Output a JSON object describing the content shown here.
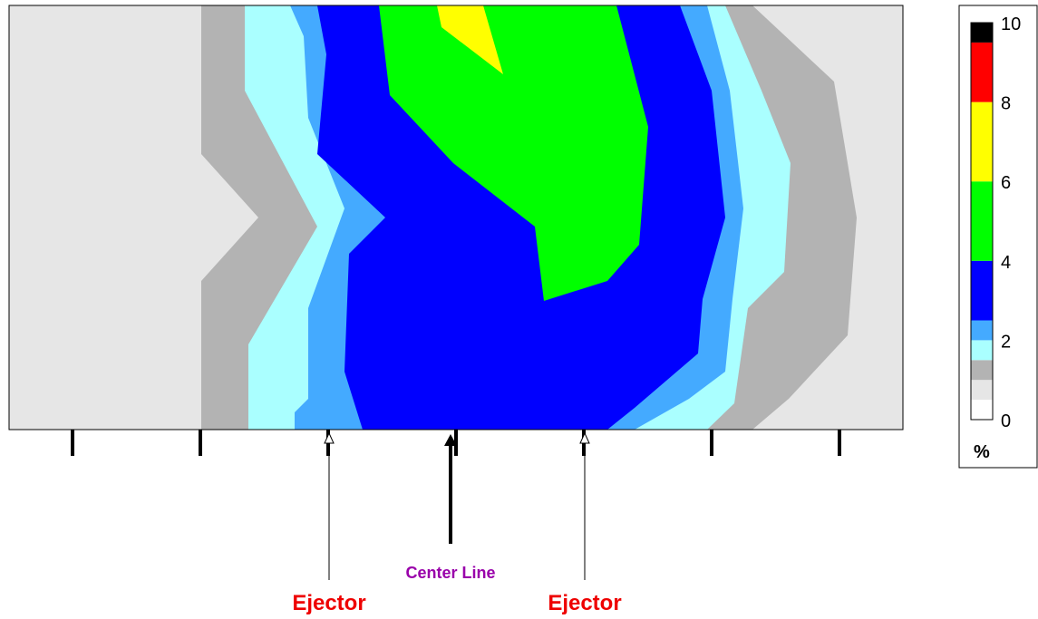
{
  "chart_data": {
    "type": "heatmap",
    "title": "",
    "xlabel": "",
    "ylabel": "",
    "colorbar": {
      "unit": "%",
      "tick_labels": [
        "0",
        "2",
        "4",
        "6",
        "8",
        "10"
      ],
      "bands": [
        {
          "from": 0,
          "to": 0.5,
          "color": "#ffffff"
        },
        {
          "from": 0.5,
          "to": 1,
          "color": "#e6e6e6"
        },
        {
          "from": 1,
          "to": 1.5,
          "color": "#b3b3b3"
        },
        {
          "from": 1.5,
          "to": 2,
          "color": "#aaffff"
        },
        {
          "from": 2,
          "to": 2.5,
          "color": "#44aaff"
        },
        {
          "from": 2.5,
          "to": 4,
          "color": "#0000ff"
        },
        {
          "from": 4,
          "to": 6,
          "color": "#00ff00"
        },
        {
          "from": 6,
          "to": 8,
          "color": "#ffff00"
        },
        {
          "from": 8,
          "to": 9.5,
          "color": "#ff0000"
        },
        {
          "from": 9.5,
          "to": 10,
          "color": "#000000"
        }
      ]
    },
    "x_ticks_count": 7,
    "annotations": {
      "center": "Center Line",
      "ejector_left": "Ejector",
      "ejector_right": "Ejector"
    },
    "colors": {
      "center_label": "#9900aa",
      "ejector_label": "#ee0000"
    }
  }
}
